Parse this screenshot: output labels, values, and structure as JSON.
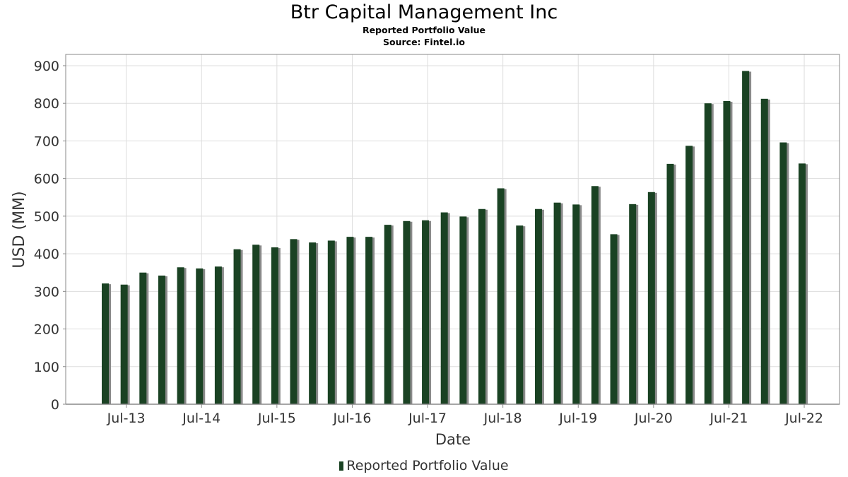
{
  "header": {
    "title": "Btr Capital Management Inc",
    "subtitle": "Reported Portfolio Value",
    "source": "Source: Fintel.io"
  },
  "legend": {
    "label": "Reported Portfolio Value"
  },
  "colors": {
    "bar": "#1a4223",
    "bar_shadow": "#8a8a8a",
    "grid": "#dddddd",
    "axis": "#888888"
  },
  "chart_data": {
    "type": "bar",
    "title": "Btr Capital Management Inc",
    "subtitle": "Reported Portfolio Value",
    "xlabel": "Date",
    "ylabel": "USD (MM)",
    "ylim": [
      0,
      930
    ],
    "yticks": [
      0,
      100,
      200,
      300,
      400,
      500,
      600,
      700,
      800,
      900
    ],
    "xticks": [
      "Jul-13",
      "Jul-14",
      "Jul-15",
      "Jul-16",
      "Jul-17",
      "Jul-18",
      "Jul-19",
      "Jul-20",
      "Jul-21",
      "Jul-22"
    ],
    "grid": true,
    "legend_position": "bottom",
    "categories": [
      "2013-Q2",
      "2013-Q3",
      "2013-Q4",
      "2014-Q1",
      "2014-Q2",
      "2014-Q3",
      "2014-Q4",
      "2015-Q1",
      "2015-Q2",
      "2015-Q3",
      "2015-Q4",
      "2016-Q1",
      "2016-Q2",
      "2016-Q3",
      "2016-Q4",
      "2017-Q1",
      "2017-Q2",
      "2017-Q3",
      "2017-Q4",
      "2018-Q1",
      "2018-Q2",
      "2018-Q3",
      "2018-Q4",
      "2019-Q1",
      "2019-Q2",
      "2019-Q3",
      "2019-Q4",
      "2020-Q1",
      "2020-Q2",
      "2020-Q3",
      "2020-Q4",
      "2021-Q1",
      "2021-Q2",
      "2021-Q3",
      "2021-Q4",
      "2022-Q1",
      "2022-Q2",
      "2022-Q3"
    ],
    "series": [
      {
        "name": "Reported Portfolio Value",
        "values": [
          321,
          318,
          350,
          342,
          364,
          361,
          366,
          412,
          424,
          417,
          439,
          430,
          435,
          445,
          445,
          477,
          487,
          489,
          510,
          499,
          519,
          574,
          475,
          519,
          536,
          531,
          580,
          452,
          532,
          564,
          639,
          687,
          800,
          806,
          886,
          812,
          696,
          640
        ]
      }
    ]
  }
}
